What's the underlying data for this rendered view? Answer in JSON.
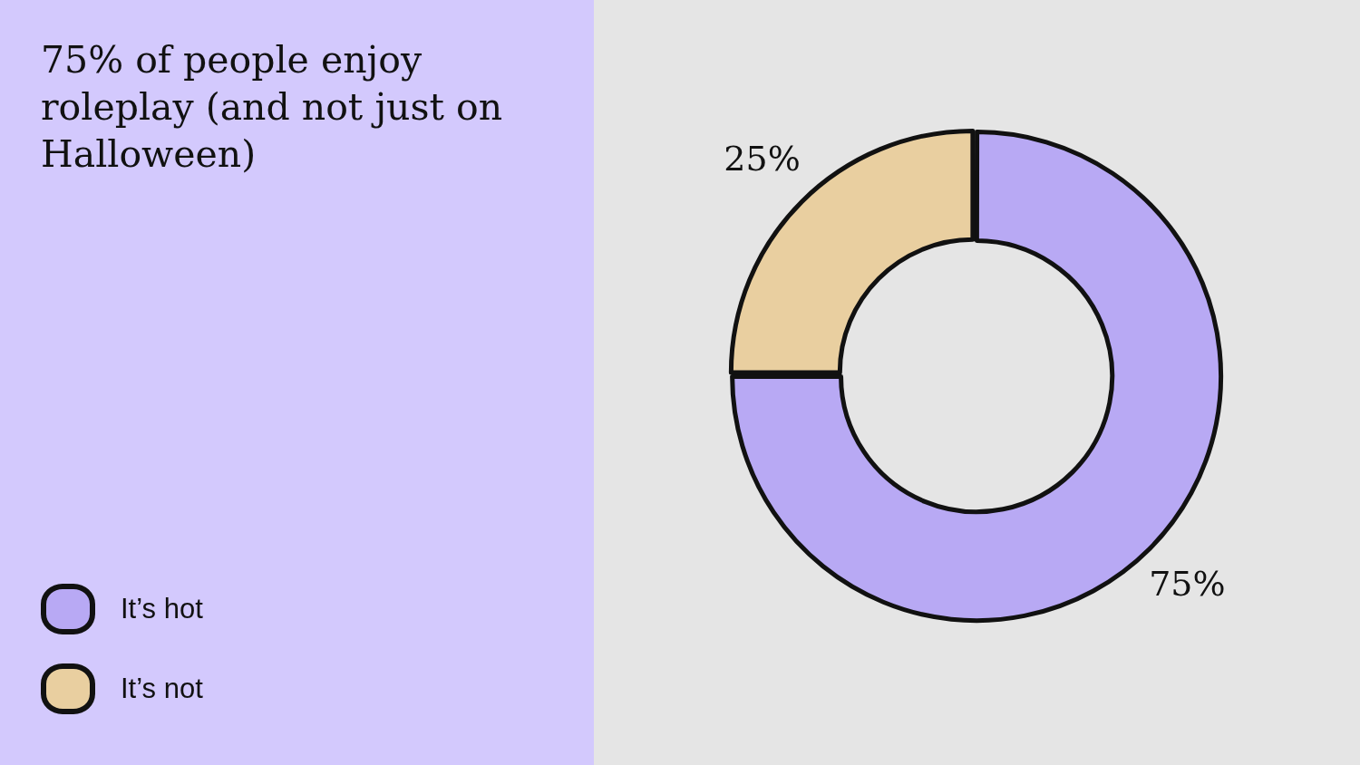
{
  "chart_data": {
    "type": "donut",
    "title": "75% of people enjoy roleplay (and not just on Halloween)",
    "categories": [
      "It’s hot",
      "It’s not"
    ],
    "values": [
      75,
      25
    ],
    "colors": [
      "#b8a9f4",
      "#e9cfa0"
    ],
    "value_labels": [
      "75%",
      "25%"
    ],
    "legend": "bottom left"
  }
}
